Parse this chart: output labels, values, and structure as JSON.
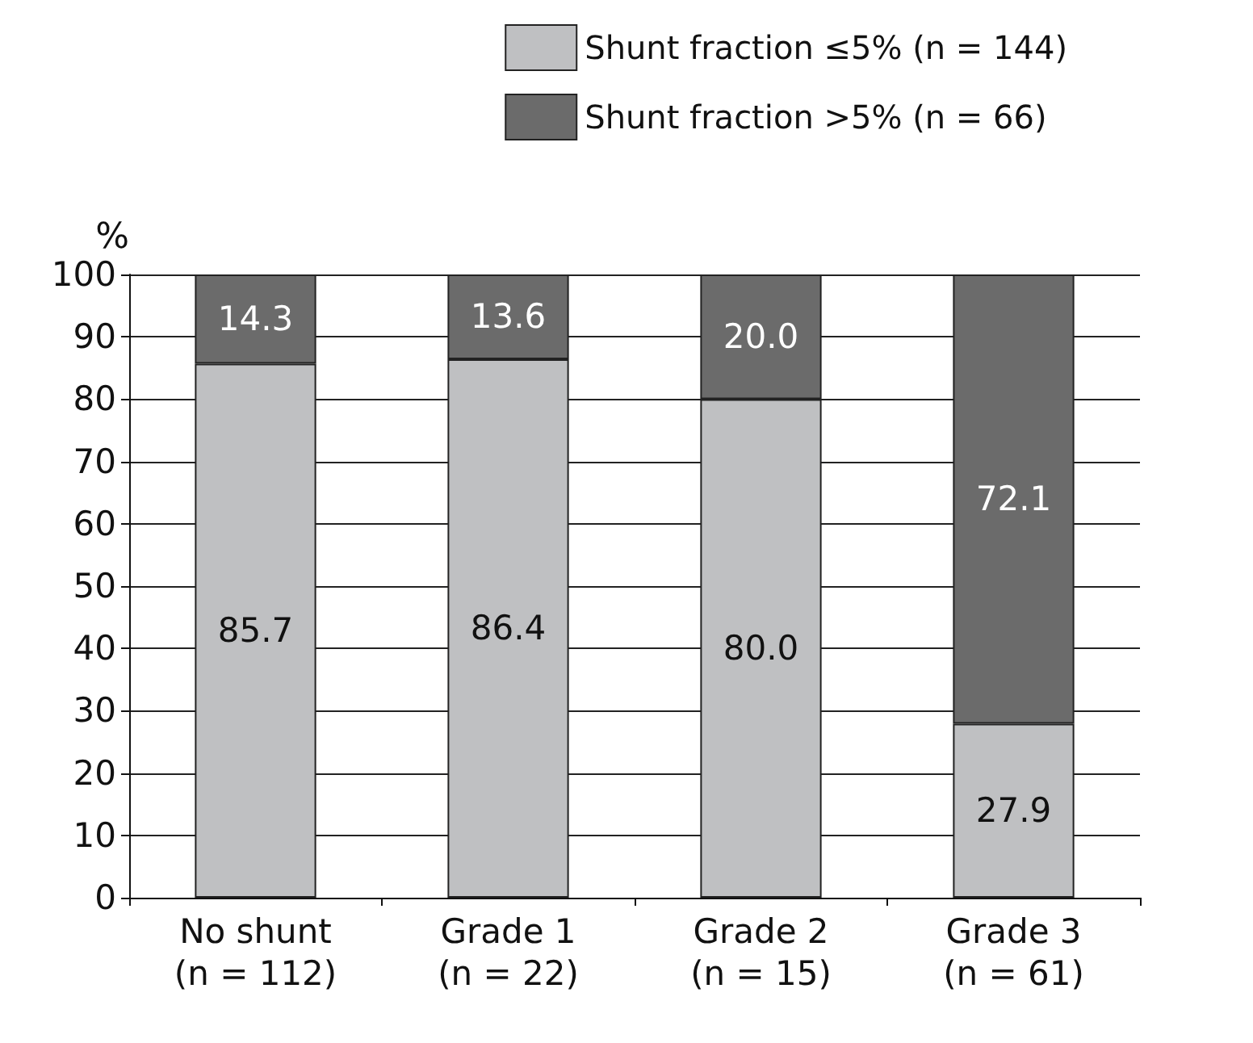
{
  "chart_data": {
    "type": "bar",
    "stacked": true,
    "ylabel": "%",
    "categories": [
      "No shunt\n(n = 112)",
      "Grade 1\n(n = 22)",
      "Grade 2\n(n = 15)",
      "Grade 3\n(n = 61)"
    ],
    "series": [
      {
        "name": "Shunt fraction ≤5% (n = 144)",
        "color": "#bfc0c2",
        "values": [
          85.7,
          86.4,
          80.0,
          27.9
        ],
        "value_labels": [
          "85.7",
          "86.4",
          "80.0",
          "27.9"
        ]
      },
      {
        "name": "Shunt fraction >5% (n = 66)",
        "color": "#6b6b6b",
        "values": [
          14.3,
          13.6,
          20.0,
          72.1
        ],
        "value_labels": [
          "14.3",
          "13.6",
          "20.0",
          "72.1"
        ]
      }
    ],
    "ylim": [
      0,
      100
    ],
    "yticks": [
      0,
      10,
      20,
      30,
      40,
      50,
      60,
      70,
      80,
      90,
      100
    ],
    "grid": "y",
    "legend": "top right"
  }
}
